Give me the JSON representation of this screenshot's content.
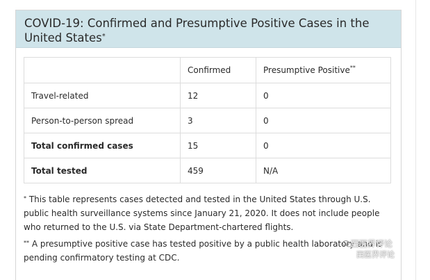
{
  "header": {
    "title": "COVID-19: Confirmed and Presumptive Positive Cases in the United States",
    "title_mark": "*"
  },
  "table": {
    "columns": [
      "",
      "Confirmed",
      "Presumptive Positive"
    ],
    "presumptive_mark": "**",
    "rows": [
      {
        "label": "Travel-related",
        "confirmed": "12",
        "presumptive": "0",
        "bold": false
      },
      {
        "label": "Person-to-person spread",
        "confirmed": "3",
        "presumptive": "0",
        "bold": false
      },
      {
        "label": "Total confirmed cases",
        "confirmed": "15",
        "presumptive": "0",
        "bold": true
      },
      {
        "label": "Total tested",
        "confirmed": "459",
        "presumptive": "N/A",
        "bold": true
      }
    ]
  },
  "notes": {
    "note1_mark": "*",
    "note1": "This table represents cases detected and tested in the United States through U.S. public health surveillance systems since January 21, 2020. It does not include people who returned to the U.S. via State Department-chartered flights.",
    "note2_mark": "**",
    "note2": "A presumptive positive case has tested positive by a public health laboratory and is pending confirmatory testing at CDC."
  },
  "watermark": {
    "line1": "西医界评论",
    "line2": "西医界评论"
  },
  "colors": {
    "header_bg": "#cfe4ea",
    "border": "#dcdcdc"
  }
}
